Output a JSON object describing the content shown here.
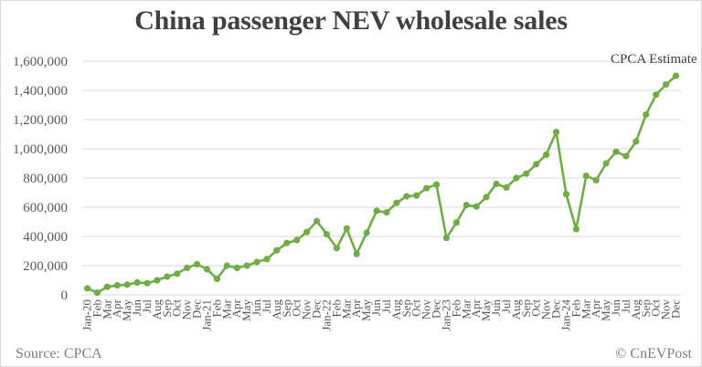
{
  "title": "China passenger NEV wholesale sales",
  "footer": {
    "source": "Source: CPCA",
    "credit": "© CnEVPost"
  },
  "annotation": "CPCA Estimate",
  "colors": {
    "line": "#70ad47",
    "grid": "#d9d9d9",
    "text": "#595959",
    "title": "#404040"
  },
  "chart_data": {
    "type": "line",
    "title": "China passenger NEV wholesale sales",
    "xlabel": "",
    "ylabel": "",
    "ylim": [
      0,
      1600000
    ],
    "yticks": [
      0,
      200000,
      400000,
      600000,
      800000,
      1000000,
      1200000,
      1400000,
      1600000
    ],
    "ytick_labels": [
      "0",
      "200,000",
      "400,000",
      "600,000",
      "800,000",
      "1,000,000",
      "1,200,000",
      "1,400,000",
      "1,600,000"
    ],
    "grid": true,
    "legend": "none",
    "annotations": [
      {
        "text": "CPCA Estimate",
        "position": "top-right, near Dec-24 point"
      }
    ],
    "categories": [
      "Jan-20",
      "Feb",
      "Mar",
      "Apr",
      "May",
      "Jun",
      "Jul",
      "Aug",
      "Sep",
      "Oct",
      "Nov",
      "Dec",
      "Jan-21",
      "Feb",
      "Mar",
      "Apr",
      "May",
      "Jun",
      "Jul",
      "Aug",
      "Sep",
      "Oct",
      "Nov",
      "Dec",
      "Jan-22",
      "Feb",
      "Mar",
      "Apr",
      "May",
      "Jun",
      "Jul",
      "Aug",
      "Sep",
      "Oct",
      "Nov",
      "Dec",
      "Jan-23",
      "Feb",
      "Mar",
      "Apr",
      "May",
      "Jun",
      "Jul",
      "Aug",
      "Sep",
      "Oct",
      "Nov",
      "Dec",
      "Jan-24",
      "Feb",
      "Mar",
      "Apr",
      "May",
      "Jun",
      "Jul",
      "Aug",
      "Sep",
      "Oct",
      "Nov",
      "Dec"
    ],
    "series": [
      {
        "name": "NEV wholesale sales",
        "color": "#70ad47",
        "values": [
          45000,
          15000,
          55000,
          65000,
          70000,
          85000,
          80000,
          100000,
          125000,
          145000,
          185000,
          210000,
          175000,
          110000,
          200000,
          185000,
          200000,
          225000,
          245000,
          305000,
          355000,
          375000,
          430000,
          505000,
          415000,
          320000,
          455000,
          280000,
          425000,
          575000,
          565000,
          630000,
          675000,
          680000,
          730000,
          755000,
          390000,
          495000,
          615000,
          605000,
          670000,
          760000,
          735000,
          800000,
          830000,
          895000,
          960000,
          1115000,
          690000,
          450000,
          815000,
          785000,
          900000,
          980000,
          950000,
          1050000,
          1235000,
          1370000,
          1440000,
          1500000
        ]
      }
    ]
  }
}
